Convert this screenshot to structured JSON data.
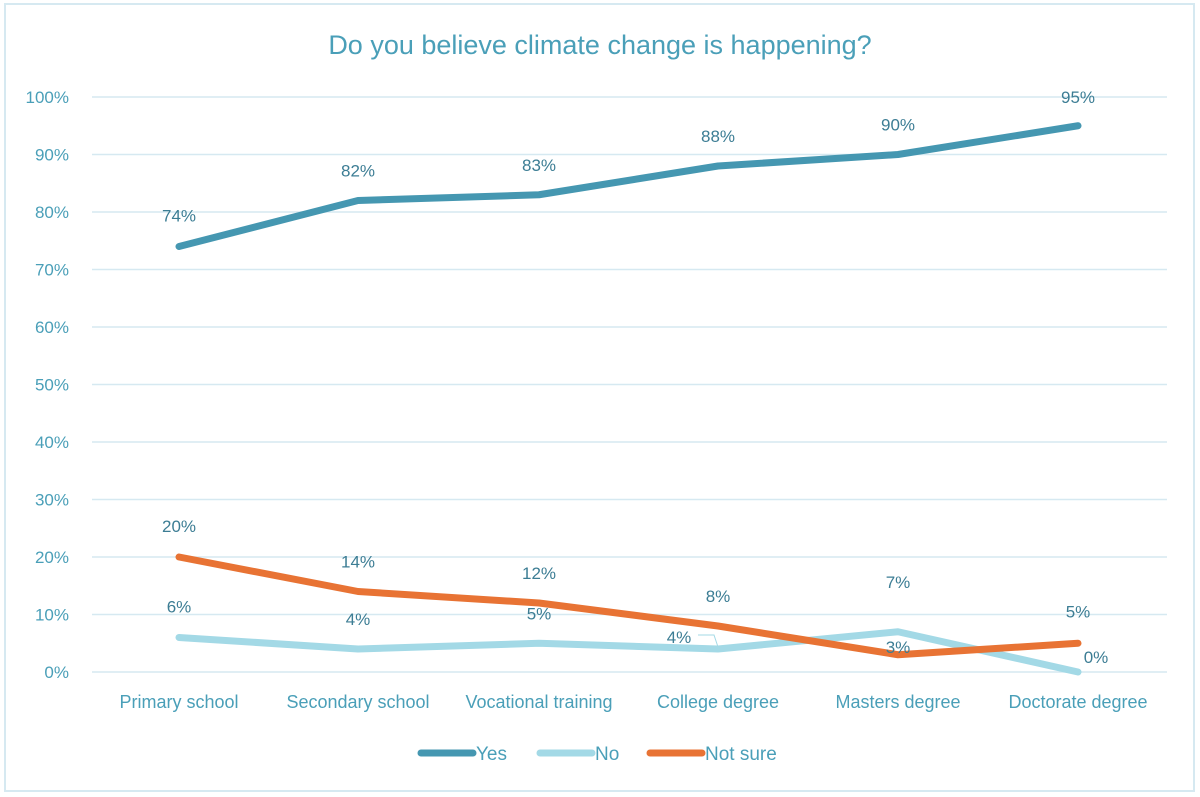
{
  "chart_data": {
    "type": "line",
    "title": "Do you believe climate change is happening?",
    "xlabel": "",
    "ylabel": "",
    "categories": [
      "Primary school",
      "Secondary school",
      "Vocational training",
      "College degree",
      "Masters degree",
      "Doctorate degree"
    ],
    "ylim": [
      0,
      100
    ],
    "yticks": [
      "0%",
      "10%",
      "20%",
      "30%",
      "40%",
      "50%",
      "60%",
      "70%",
      "80%",
      "90%",
      "100%"
    ],
    "grid": true,
    "legend_position": "bottom",
    "series": [
      {
        "name": "Yes",
        "color": "#4597b1",
        "values": [
          74,
          82,
          83,
          88,
          90,
          95
        ],
        "labels": [
          "74%",
          "82%",
          "83%",
          "88%",
          "90%",
          "95%"
        ]
      },
      {
        "name": "No",
        "color": "#a3d9e6",
        "values": [
          6,
          4,
          5,
          4,
          7,
          0
        ],
        "labels": [
          "6%",
          "4%",
          "5%",
          "4%",
          "7%",
          "0%"
        ]
      },
      {
        "name": "Not sure",
        "color": "#e87334",
        "values": [
          20,
          14,
          12,
          8,
          3,
          5
        ],
        "labels": [
          "20%",
          "14%",
          "12%",
          "8%",
          "3%",
          "5%"
        ]
      }
    ]
  }
}
